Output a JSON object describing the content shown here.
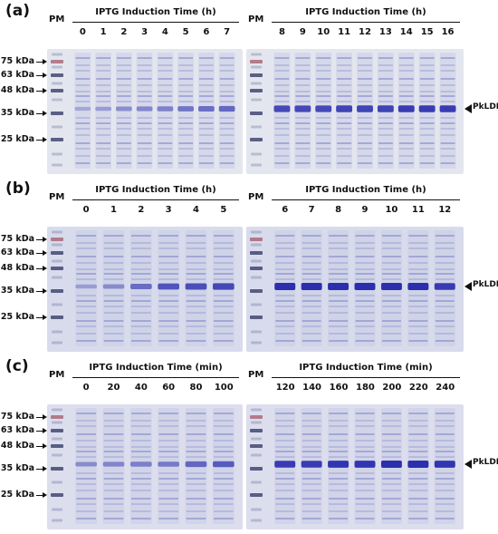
{
  "panels": [
    {
      "label": "(a)",
      "ladder_label": "PM",
      "gel_left": {
        "title": "IPTG Induction Time (h)",
        "lanes": [
          "0",
          "1",
          "2",
          "3",
          "4",
          "5",
          "6",
          "7"
        ],
        "target_intensity": [
          0.05,
          0.15,
          0.25,
          0.3,
          0.35,
          0.45,
          0.5,
          0.55
        ]
      },
      "gel_right": {
        "title": "IPTG Induction Time (h)",
        "lanes": [
          "8",
          "9",
          "10",
          "11",
          "12",
          "13",
          "14",
          "15",
          "16"
        ],
        "target_intensity": [
          0.8,
          0.8,
          0.8,
          0.85,
          0.85,
          0.85,
          0.9,
          0.9,
          0.9
        ]
      },
      "markers": [
        "75 kDa",
        "63 kDa",
        "48 kDa",
        "35 kDa",
        "25 kDa"
      ],
      "band_label": "PkLDH",
      "background": "#e4e6ef"
    },
    {
      "label": "(b)",
      "ladder_label": "PM",
      "gel_left": {
        "title": "IPTG Induction Time (h)",
        "lanes": [
          "0",
          "1",
          "2",
          "3",
          "4",
          "5"
        ],
        "target_intensity": [
          0.1,
          0.25,
          0.5,
          0.7,
          0.75,
          0.8
        ]
      },
      "gel_right": {
        "title": "IPTG Induction Time (h)",
        "lanes": [
          "6",
          "7",
          "8",
          "9",
          "10",
          "11",
          "12"
        ],
        "target_intensity": [
          1,
          1,
          1,
          1,
          1,
          1,
          0.9
        ]
      },
      "markers": [
        "75 kDa",
        "63 kDa",
        "48 kDa",
        "35 kDa",
        "25 kDa"
      ],
      "band_label": "PkLDH",
      "background": "#d8dbec"
    },
    {
      "label": "(c)",
      "ladder_label": "PM",
      "gel_left": {
        "title": "IPTG Induction Time (min)",
        "lanes": [
          "0",
          "20",
          "40",
          "60",
          "80",
          "100"
        ],
        "target_intensity": [
          0.25,
          0.3,
          0.35,
          0.4,
          0.55,
          0.65
        ]
      },
      "gel_right": {
        "title": "IPTG Induction Time (min)",
        "lanes": [
          "120",
          "140",
          "160",
          "180",
          "200",
          "220",
          "240"
        ],
        "target_intensity": [
          0.9,
          0.9,
          0.95,
          0.95,
          1,
          1,
          0.95
        ]
      },
      "markers": [
        "75 kDa",
        "63 kDa",
        "48 kDa",
        "35 kDa",
        "25 kDa"
      ],
      "band_label": "PkLDH",
      "background": "#dcdeee"
    }
  ],
  "colors": {
    "band": "#2b2fae",
    "faint_band": "#7f84c8",
    "ladder_dark": "#2c3360",
    "ladder_red": "#a45a6a"
  }
}
